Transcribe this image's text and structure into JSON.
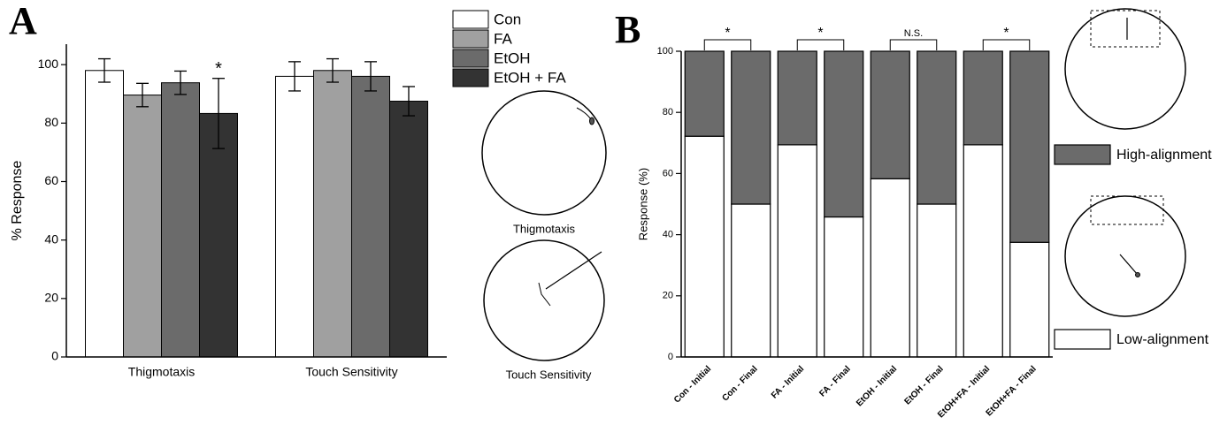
{
  "chart_data": [
    {
      "type": "bar",
      "panel_label": "A",
      "ylabel": "% Response",
      "categories": [
        "Thigmotaxis",
        "Touch Sensitivity"
      ],
      "series": [
        {
          "name": "Con",
          "color": "#ffffff",
          "values": [
            98,
            96
          ],
          "errors": [
            4,
            5
          ]
        },
        {
          "name": "FA",
          "color": "#a0a0a0",
          "values": [
            89.6,
            98
          ],
          "errors": [
            4,
            4
          ]
        },
        {
          "name": "EtOH",
          "color": "#6b6b6b",
          "values": [
            93.8,
            96
          ],
          "errors": [
            4,
            5
          ]
        },
        {
          "name": "EtOH + FA",
          "color": "#333333",
          "values": [
            83.3,
            87.5
          ],
          "errors": [
            12,
            5
          ],
          "marks": [
            "*",
            null
          ]
        }
      ],
      "ylim": [
        0,
        107
      ],
      "yticks": [
        0,
        20,
        40,
        60,
        80,
        100
      ],
      "grid": false,
      "legend": "top-right",
      "diagram_labels": [
        "Thigmotaxis",
        "Touch Sensitivity"
      ]
    },
    {
      "type": "stacked_bar",
      "panel_label": "B",
      "ylabel": "Response (%)",
      "categories": [
        "Con - Initial",
        "Con - Final",
        "FA - Initial",
        "FA - Final",
        "EtOH - Initial",
        "EtOH - Final",
        "EtOH+FA - Initial",
        "EtOH+FA - Final"
      ],
      "series": [
        {
          "name": "Low-alignment",
          "color": "#ffffff",
          "values": [
            72.2,
            50,
            69.4,
            45.8,
            58.3,
            50,
            69.4,
            37.5
          ]
        },
        {
          "name": "High-alignment",
          "color": "#6b6b6b",
          "values": [
            27.8,
            50,
            30.6,
            54.2,
            41.7,
            50,
            30.6,
            62.5
          ]
        }
      ],
      "ylim": [
        0,
        100
      ],
      "yticks": [
        0,
        20,
        40,
        60,
        80,
        100
      ],
      "grid": false,
      "legend": "right",
      "comparisons": [
        "*",
        "*",
        "N.S.",
        "*"
      ]
    }
  ]
}
